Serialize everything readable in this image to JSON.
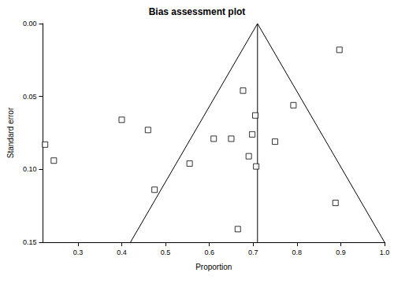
{
  "chart_data": {
    "type": "scatter",
    "title": "Bias assessment plot",
    "x_label": "Proportion",
    "y_label": "Standard error",
    "x": [
      0.225,
      0.245,
      0.4,
      0.46,
      0.475,
      0.555,
      0.61,
      0.65,
      0.677,
      0.665,
      0.69,
      0.698,
      0.705,
      0.707,
      0.75,
      0.792,
      0.888,
      0.897
    ],
    "values": [
      0.083,
      0.094,
      0.066,
      0.073,
      0.114,
      0.096,
      0.079,
      0.079,
      0.046,
      0.141,
      0.091,
      0.076,
      0.063,
      0.098,
      0.081,
      0.056,
      0.123,
      0.018
    ],
    "color": "#000000",
    "marker": "square",
    "reference_lines": [
      {
        "x": [
          0.71,
          0.42
        ],
        "y": [
          0,
          0.15
        ]
      },
      {
        "x": [
          0.71,
          1.0
        ],
        "y": [
          0,
          0.15
        ]
      },
      {
        "x": [
          0.71,
          0.71
        ],
        "y": [
          0,
          0.15
        ]
      }
    ],
    "xlim": [
      0.22,
      1.0
    ],
    "xticks": [
      0.3,
      0.4,
      0.5,
      0.6,
      0.7,
      0.8,
      0.9,
      {
        "value": 1,
        "label": "1.0"
      }
    ],
    "ylim": [
      0,
      0.15
    ],
    "yticks": [
      {
        "value": 0,
        "label": "0.00"
      },
      {
        "value": 0.05,
        "label": "0.05"
      },
      {
        "value": 0.1,
        "label": "0.10"
      },
      {
        "value": 0.15,
        "label": "0.15"
      }
    ],
    "grid": false
  }
}
